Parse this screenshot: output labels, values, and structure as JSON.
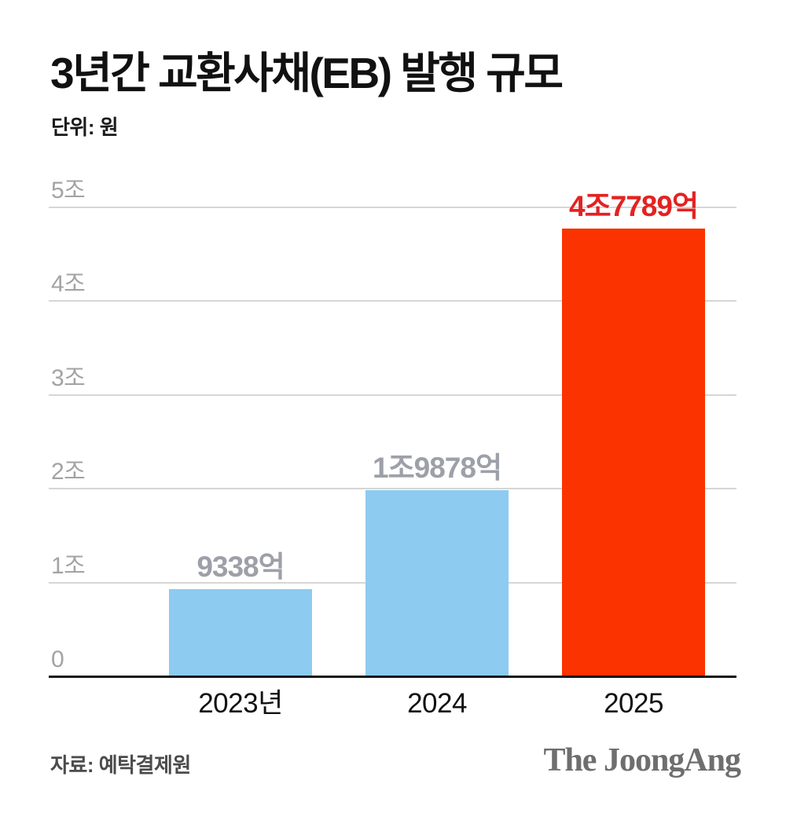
{
  "header": {
    "title": "3년간 교환사채(EB) 발행 규모",
    "unit_label": "단위: 원"
  },
  "chart_data": {
    "type": "bar",
    "title": "3년간 교환사채(EB) 발행 규모",
    "unit": "원",
    "categories": [
      "2023년",
      "2024",
      "2025"
    ],
    "values": [
      0.9338,
      1.9878,
      4.7789
    ],
    "values_unit": "조 원",
    "value_labels": [
      "9338억",
      "1조9878억",
      "4조7789억"
    ],
    "bar_colors": [
      "#8dcbf0",
      "#8dcbf0",
      "#fa3300"
    ],
    "value_label_colors": [
      "#9da0a8",
      "#9da0a8",
      "#e32222"
    ],
    "highlight_index": 2,
    "y_ticks": [
      {
        "value": 0,
        "label": "0"
      },
      {
        "value": 1,
        "label": "1조"
      },
      {
        "value": 2,
        "label": "2조"
      },
      {
        "value": 3,
        "label": "3조"
      },
      {
        "value": 4,
        "label": "4조"
      },
      {
        "value": 5,
        "label": "5조"
      }
    ],
    "ylim": [
      0,
      5
    ],
    "grid": true,
    "grid_color": "#d6d6d6",
    "baseline_color": "#141414",
    "tick_label_color": "#a3a3a3",
    "legend": "none"
  },
  "footer": {
    "source": "자료: 예탁결제원",
    "logo": "The JoongAng"
  }
}
